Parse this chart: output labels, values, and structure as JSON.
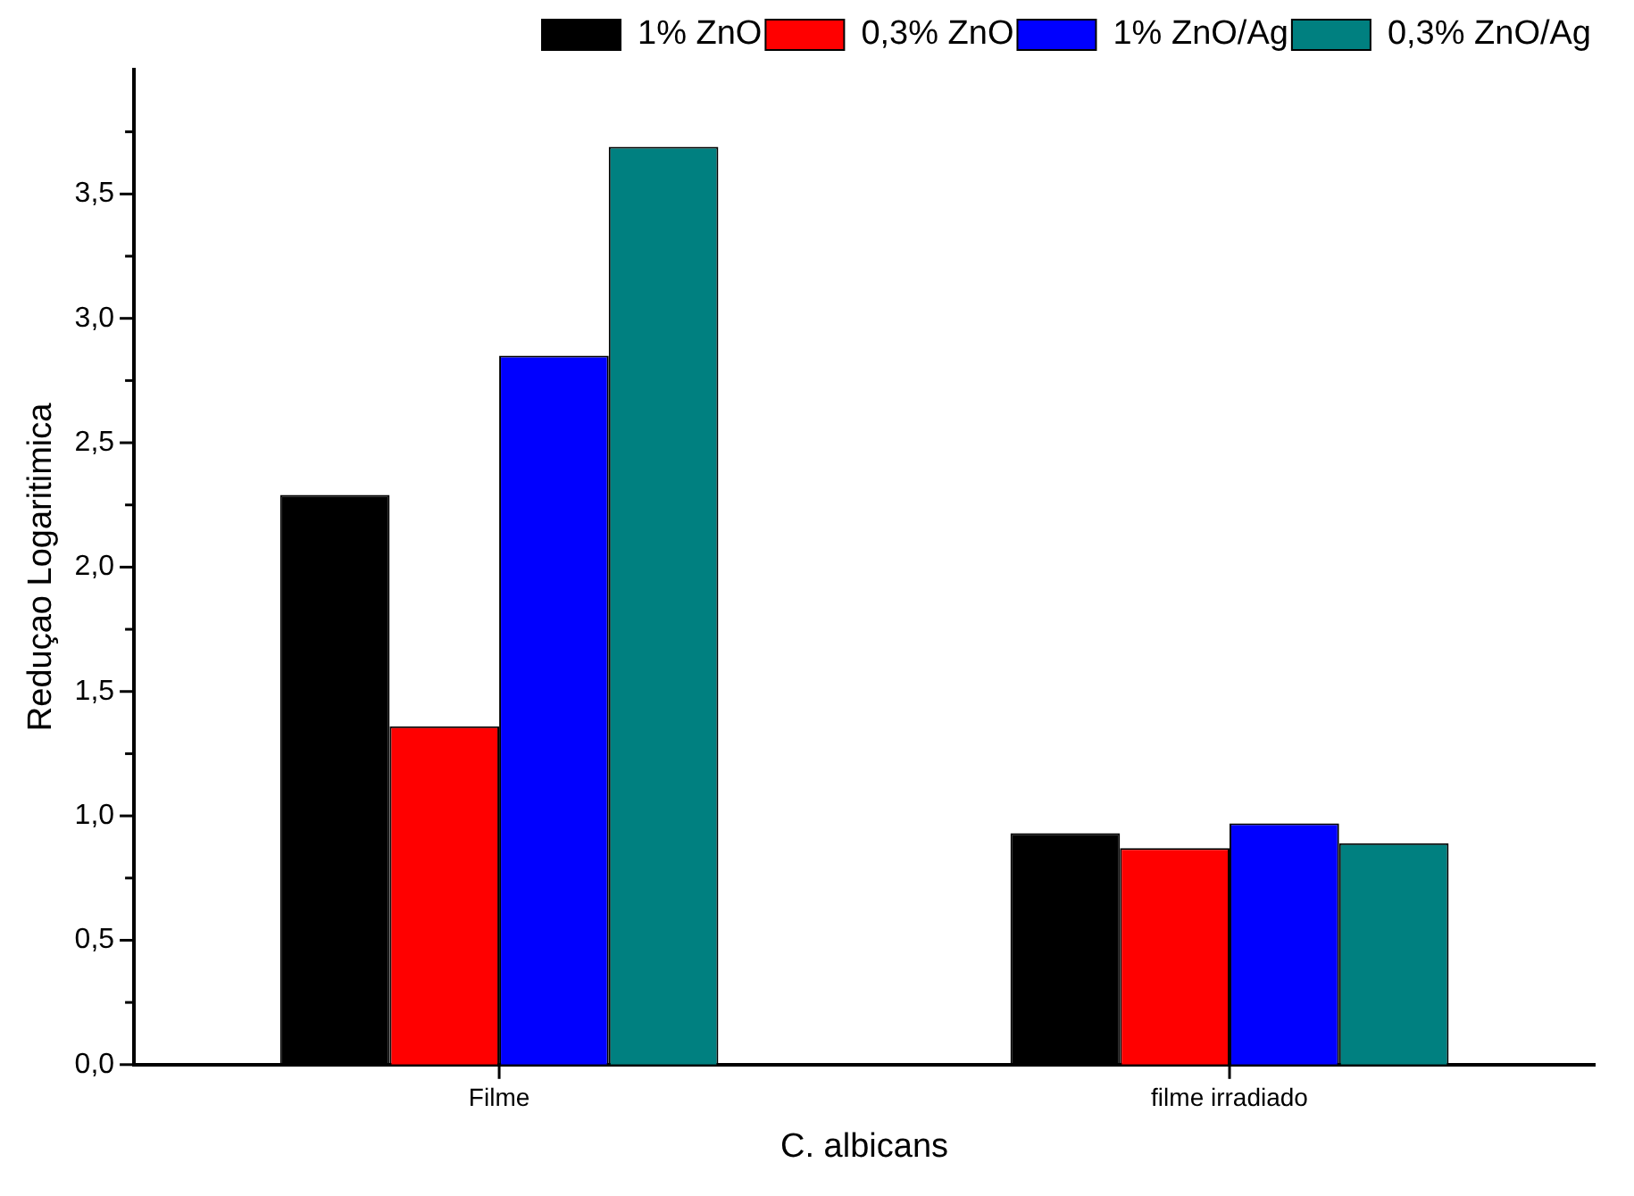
{
  "chart_data": {
    "type": "bar",
    "xlabel": "C. albicans",
    "ylabel": "Reduçao Logaritimica",
    "categories": [
      "Filme",
      "filme irradiado"
    ],
    "series": [
      {
        "name": "1% ZnO",
        "color": "#000000",
        "values": [
          2.29,
          0.93
        ]
      },
      {
        "name": "0,3% ZnO",
        "color": "#ff0000",
        "values": [
          1.36,
          0.87
        ]
      },
      {
        "name": "1% ZnO/Ag",
        "color": "#0000ff",
        "values": [
          2.85,
          0.97
        ]
      },
      {
        "name": "0,3% ZnO/Ag",
        "color": "#008080",
        "values": [
          3.69,
          0.89
        ]
      }
    ],
    "ylim": [
      0,
      4
    ],
    "yticks": [
      {
        "value": 0,
        "label": "0,0"
      },
      {
        "value": 0.25,
        "label": null
      },
      {
        "value": 0.5,
        "label": "0,5"
      },
      {
        "value": 0.75,
        "label": null
      },
      {
        "value": 1,
        "label": "1,0"
      },
      {
        "value": 1.25,
        "label": null
      },
      {
        "value": 1.5,
        "label": "1,5"
      },
      {
        "value": 1.75,
        "label": null
      },
      {
        "value": 2,
        "label": "2,0"
      },
      {
        "value": 2.25,
        "label": null
      },
      {
        "value": 2.5,
        "label": "2,5"
      },
      {
        "value": 2.75,
        "label": null
      },
      {
        "value": 3,
        "label": "3,0"
      },
      {
        "value": 3.25,
        "label": null
      },
      {
        "value": 3.5,
        "label": "3,5"
      },
      {
        "value": 3.75,
        "label": null
      }
    ],
    "grid": false,
    "legend": "top right"
  }
}
